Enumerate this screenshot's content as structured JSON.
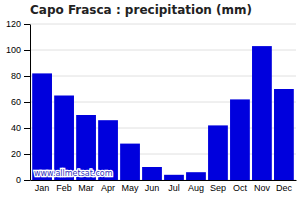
{
  "chart_data": {
    "type": "bar",
    "title": "Capo Frasca : precipitation (mm)",
    "categories": [
      "Jan",
      "Feb",
      "Mar",
      "Apr",
      "May",
      "Jun",
      "Jul",
      "Aug",
      "Sep",
      "Oct",
      "Nov",
      "Dec"
    ],
    "values": [
      82,
      65,
      50,
      46,
      28,
      10,
      4,
      6,
      42,
      62,
      103,
      70
    ],
    "color": "#0000dd",
    "ylim": [
      0,
      120
    ],
    "yticks": [
      0,
      20,
      40,
      60,
      80,
      100,
      120
    ],
    "grid": true,
    "annotations": [
      "www.allmetsat.com"
    ]
  }
}
